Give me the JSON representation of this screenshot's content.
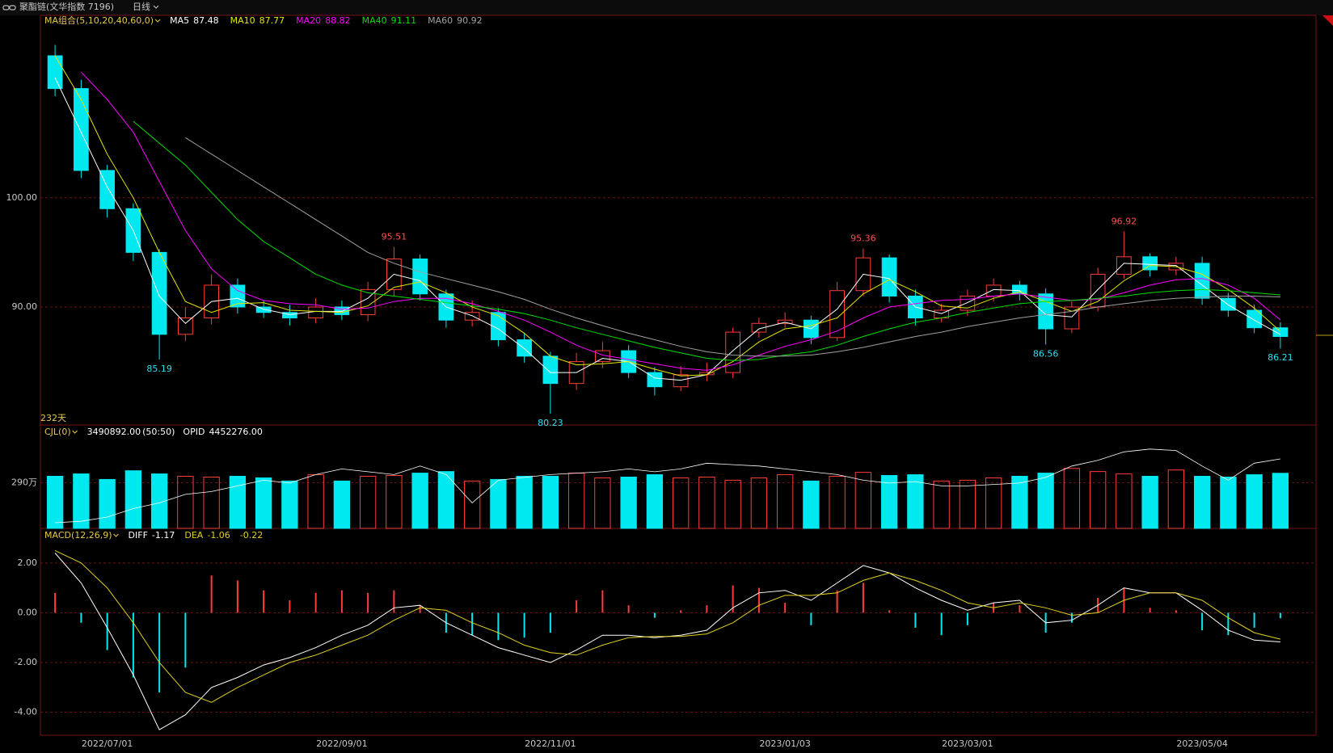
{
  "header": {
    "instrument": "聚酯链(文华指数 7196)",
    "period": "日线"
  },
  "chart_data": {
    "type": "candlestick",
    "categories": [
      null,
      null,
      "2022/07/01",
      null,
      null,
      null,
      null,
      null,
      null,
      null,
      null,
      "2022/09/01",
      null,
      null,
      null,
      null,
      null,
      null,
      null,
      "2022/11/01",
      null,
      null,
      null,
      null,
      null,
      null,
      null,
      null,
      "2023/01/03",
      null,
      null,
      null,
      null,
      null,
      null,
      "2023/03/01",
      null,
      null,
      null,
      null,
      null,
      null,
      null,
      null,
      "2023/05/04",
      null,
      null,
      null
    ],
    "open": [
      113,
      110,
      102.5,
      99,
      95,
      87.5,
      89,
      92,
      90,
      89.5,
      89,
      90,
      89.3,
      91.6,
      94.4,
      91.2,
      88.8,
      89.5,
      87,
      85.5,
      83,
      85,
      86,
      84,
      82.7,
      83.8,
      84,
      87.7,
      88.5,
      88.8,
      87.2,
      91.5,
      94.5,
      91,
      89,
      89.7,
      91,
      92,
      91.2,
      88,
      90,
      93,
      94.6,
      93.4,
      94,
      90.8,
      89.7,
      88.1
    ],
    "high": [
      114,
      110.8,
      103,
      99.5,
      95.3,
      90,
      93,
      92.6,
      90.6,
      90.2,
      90.8,
      90.6,
      92.3,
      95.51,
      94.8,
      91.6,
      90.6,
      89.9,
      87.6,
      85.9,
      85.8,
      86.8,
      86.5,
      84.5,
      84.6,
      84.9,
      88.1,
      89,
      89.5,
      89.2,
      92.3,
      95.36,
      94.8,
      91.6,
      90.3,
      91.6,
      92.6,
      92.4,
      91.7,
      90.5,
      93.6,
      96.92,
      94.9,
      94.6,
      94.6,
      91.3,
      90.2,
      88.6
    ],
    "low": [
      109.3,
      101.8,
      98.2,
      94.2,
      85.19,
      86.9,
      88.4,
      89.4,
      89,
      88.3,
      88.5,
      88.8,
      88.7,
      91,
      90.6,
      88.1,
      88.2,
      86.4,
      84.9,
      80.23,
      82.4,
      84.4,
      83.5,
      81.9,
      82.3,
      83.2,
      83.5,
      87.2,
      88.1,
      86.6,
      86.9,
      91,
      90.4,
      88.3,
      88.6,
      89.2,
      90.5,
      90.6,
      86.56,
      87.6,
      89.6,
      92.6,
      92.8,
      92.9,
      90.2,
      89.1,
      87.6,
      86.21
    ],
    "close": [
      110,
      102.5,
      99,
      95,
      87.5,
      89,
      92,
      90,
      89.5,
      89,
      90,
      89.3,
      91.6,
      94.4,
      91.2,
      88.8,
      89.5,
      87,
      85.5,
      83,
      85,
      86,
      84,
      82.7,
      83.8,
      84,
      87.7,
      88.5,
      88.8,
      87.2,
      91.5,
      94.5,
      91,
      89,
      89.7,
      91,
      92,
      91.2,
      88,
      90,
      93,
      94.6,
      93.4,
      94,
      90.8,
      89.7,
      88.1,
      87.3
    ],
    "up_color": "#ff3b3b",
    "down_color": "#00e8f0",
    "ylim": [
      79.2,
      116.7
    ],
    "yticks": [
      {
        "value": 90,
        "label": "90.00"
      },
      {
        "value": 100,
        "label": "100.00"
      }
    ],
    "grid": true,
    "bar_count_label": "232天",
    "ma_label": "MA组合(5,10,20,40,60,0)",
    "series": [
      {
        "name": "MA5",
        "color": "#ffffff",
        "current": 87.48,
        "values": [
          111,
          106,
          101,
          97,
          91,
          88.5,
          90.5,
          90.8,
          89.8,
          89.3,
          89.6,
          89.6,
          90.8,
          93,
          92.4,
          90,
          89.2,
          88,
          86.2,
          84,
          84,
          85.3,
          85,
          83.5,
          83.3,
          83.8,
          86,
          88,
          88.6,
          88,
          89.8,
          93,
          92.6,
          90,
          89.4,
          90.4,
          91.6,
          91.5,
          89.3,
          89.1,
          91.6,
          94,
          93.9,
          93.8,
          92,
          90.2,
          88.8,
          87.48
        ]
      },
      {
        "name": "MA10",
        "color": "#e6e600",
        "current": 87.77,
        "values": [
          113,
          109,
          104,
          100,
          95,
          90.5,
          89.5,
          90.3,
          90.4,
          89.7,
          89.6,
          89.5,
          90.1,
          91.8,
          92.3,
          91.3,
          90,
          89.2,
          87.6,
          85.5,
          84.7,
          84.8,
          85,
          84.3,
          83.7,
          83.8,
          85,
          86.8,
          88,
          88.3,
          89,
          91.2,
          92.5,
          91.4,
          90.1,
          89.9,
          90.8,
          91.4,
          90.5,
          89.6,
          90.5,
          92.4,
          93.8,
          93.7,
          93,
          91.6,
          89.9,
          87.77
        ]
      },
      {
        "name": "MA20",
        "color": "#ff00ff",
        "current": 88.82,
        "values": [
          null,
          111.5,
          109,
          106,
          101.5,
          97,
          93.5,
          91.5,
          90.6,
          90.3,
          90.2,
          89.8,
          89.9,
          90.5,
          90.8,
          90.8,
          90.3,
          89.6,
          88.8,
          87.7,
          86.5,
          85.6,
          85.2,
          84.8,
          84.4,
          84.2,
          84.7,
          85.6,
          86.4,
          87,
          87.8,
          89,
          90,
          90.3,
          90.6,
          90.7,
          91,
          91.2,
          90.9,
          90.6,
          90.7,
          91.3,
          92,
          92.5,
          92.6,
          92,
          90.8,
          88.82
        ]
      },
      {
        "name": "MA40",
        "color": "#00e000",
        "current": 91.11,
        "values": [
          null,
          null,
          null,
          107,
          105,
          103,
          100.5,
          98,
          96,
          94.5,
          93,
          92,
          91.3,
          91,
          90.7,
          90.4,
          90.1,
          89.8,
          89.4,
          88.8,
          88.1,
          87.5,
          86.9,
          86.3,
          85.8,
          85.3,
          85.1,
          85.2,
          85.6,
          85.9,
          86.5,
          87.3,
          88,
          88.6,
          89,
          89.5,
          89.9,
          90.3,
          90.5,
          90.6,
          90.8,
          91,
          91.3,
          91.5,
          91.6,
          91.5,
          91.3,
          91.11
        ]
      },
      {
        "name": "MA60",
        "color": "#a0a0a0",
        "current": 90.92,
        "values": [
          null,
          null,
          null,
          null,
          null,
          105.5,
          104,
          102.5,
          101,
          99.5,
          98,
          96.5,
          95,
          94,
          93.2,
          92.6,
          92,
          91.4,
          90.7,
          89.8,
          89,
          88.3,
          87.6,
          87,
          86.4,
          85.9,
          85.6,
          85.5,
          85.5,
          85.6,
          85.9,
          86.3,
          86.8,
          87.3,
          87.7,
          88.2,
          88.6,
          89,
          89.3,
          89.6,
          90,
          90.3,
          90.6,
          90.8,
          90.9,
          91,
          91,
          90.92
        ]
      }
    ],
    "peak_labels": [
      {
        "index": 4,
        "side": "low"
      },
      {
        "index": 13,
        "side": "high"
      },
      {
        "index": 19,
        "side": "low"
      },
      {
        "index": 31,
        "side": "high"
      },
      {
        "index": 38,
        "side": "low"
      },
      {
        "index": 41,
        "side": "high"
      },
      {
        "index": 47,
        "side": "low"
      }
    ],
    "volume": {
      "type": "bar",
      "label": "CJL(0)",
      "current": {
        "value": 3490892,
        "label": "3490892.00"
      },
      "ratio_label": "(50:50)",
      "values": [
        3300000,
        3450000,
        3100000,
        3650000,
        3450000,
        3300000,
        3250000,
        3300000,
        3200000,
        3000000,
        3400000,
        3000000,
        3300000,
        3350000,
        3500000,
        3600000,
        3000000,
        3100000,
        3300000,
        3300000,
        3500000,
        3200000,
        3250000,
        3400000,
        3200000,
        3250000,
        3050000,
        3200000,
        3400000,
        3000000,
        3300000,
        3550000,
        3350000,
        3400000,
        3000000,
        3050000,
        3200000,
        3300000,
        3500000,
        3800000,
        3600000,
        3450000,
        3300000,
        3700000,
        3300000,
        3250000,
        3400000,
        3490892
      ],
      "ylim": [
        0,
        6550000
      ],
      "yticks": [
        {
          "value": 2900000,
          "label": "290万"
        }
      ],
      "opid": {
        "name": "OPID",
        "color": "#ffffff",
        "current": {
          "value": 4452276,
          "label": "4452276.00"
        },
        "values": [
          2200000,
          2250000,
          2400000,
          2700000,
          2900000,
          3200000,
          3300000,
          3500000,
          3700000,
          3600000,
          3900000,
          4100000,
          4000000,
          3900000,
          4200000,
          3900000,
          2900000,
          3700000,
          3800000,
          3900000,
          3950000,
          4000000,
          4100000,
          4000000,
          4100000,
          4300000,
          4250000,
          4200000,
          4100000,
          4000000,
          3900000,
          3700000,
          3600000,
          3650000,
          3500000,
          3500000,
          3550000,
          3600000,
          3800000,
          4200000,
          4400000,
          4700000,
          4800000,
          4750000,
          4200000,
          3700000,
          4300000,
          4452276
        ],
        "ylim": [
          2000000,
          5650000
        ]
      }
    },
    "macd": {
      "type": "macd",
      "label": "MACD(12,26,9)",
      "diff": {
        "name": "DIFF",
        "color": "#ffffff",
        "current": -1.17,
        "values": [
          2.4,
          1.2,
          -0.6,
          -2.5,
          -4.7,
          -4.1,
          -3,
          -2.6,
          -2.1,
          -1.8,
          -1.4,
          -0.9,
          -0.5,
          0.2,
          0.3,
          -0.4,
          -0.9,
          -1.4,
          -1.7,
          -2,
          -1.5,
          -0.9,
          -0.9,
          -1,
          -0.9,
          -0.7,
          0.2,
          0.8,
          0.9,
          0.5,
          1.2,
          1.9,
          1.6,
          1,
          0.5,
          0.1,
          0.4,
          0.5,
          -0.4,
          -0.3,
          0.3,
          1,
          0.8,
          0.8,
          0.1,
          -0.7,
          -1.1,
          -1.17
        ]
      },
      "dea": {
        "name": "DEA",
        "color": "#e0d020",
        "current": -1.06,
        "values": [
          2.5,
          2,
          1,
          -0.4,
          -2,
          -3.2,
          -3.6,
          -3,
          -2.5,
          -2,
          -1.7,
          -1.3,
          -0.9,
          -0.3,
          0.2,
          0.1,
          -0.4,
          -0.8,
          -1.3,
          -1.6,
          -1.7,
          -1.3,
          -1,
          -0.95,
          -0.95,
          -0.85,
          -0.4,
          0.3,
          0.7,
          0.7,
          0.8,
          1.3,
          1.6,
          1.3,
          0.9,
          0.4,
          0.2,
          0.4,
          0.2,
          -0.1,
          0,
          0.5,
          0.8,
          0.8,
          0.5,
          -0.2,
          -0.8,
          -1.06
        ]
      },
      "hist": {
        "current": -0.22,
        "values": [
          0.8,
          -0.4,
          -1.5,
          -2.6,
          -3.2,
          -2.2,
          1.5,
          1.3,
          0.9,
          0.5,
          0.8,
          0.9,
          0.8,
          0.9,
          0.3,
          -0.8,
          -0.9,
          -1.1,
          -1,
          -0.8,
          0.5,
          0.9,
          0.3,
          -0.2,
          0.1,
          0.3,
          1.1,
          1,
          0.4,
          -0.5,
          0.9,
          1.2,
          0.1,
          -0.6,
          -0.9,
          -0.5,
          0.4,
          0.3,
          -0.8,
          -0.4,
          0.6,
          1,
          0.2,
          0.1,
          -0.7,
          -0.9,
          -0.6,
          -0.22
        ]
      },
      "ylim": [
        -4.92,
        3.39
      ],
      "yticks": [
        {
          "value": 2,
          "label": "2.00"
        },
        {
          "value": 0,
          "label": "0.00"
        },
        {
          "value": -2,
          "label": "-2.00"
        },
        {
          "value": -4,
          "label": "-4.00"
        }
      ]
    }
  }
}
